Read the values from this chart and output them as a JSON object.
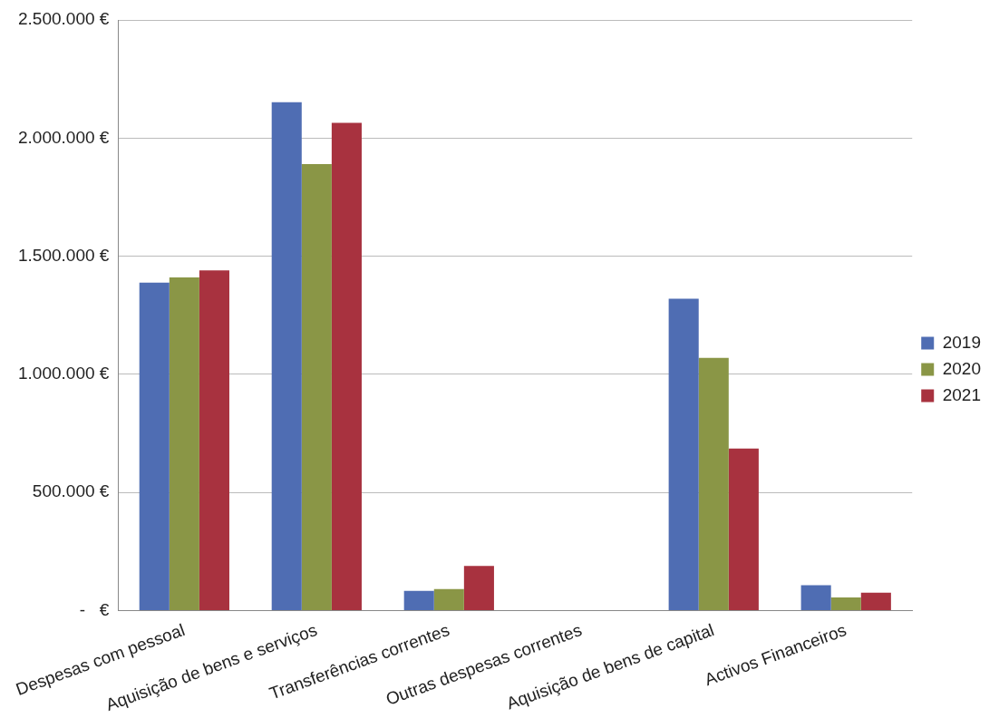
{
  "chart_data": {
    "type": "bar",
    "categories": [
      "Despesas com pessoal",
      "Aquisição de bens e serviços",
      "Transferências correntes",
      "Outras despesas correntes",
      "Aquisição de bens de capital",
      "Activos Financeiros"
    ],
    "series": [
      {
        "name": "2019",
        "color": "#4f6db3",
        "values": [
          1388000,
          2152000,
          83000,
          null,
          1320000,
          107000
        ]
      },
      {
        "name": "2020",
        "color": "#8a9646",
        "values": [
          1410000,
          1890000,
          91000,
          null,
          1069000,
          55000
        ]
      },
      {
        "name": "2021",
        "color": "#a8323f",
        "values": [
          1440000,
          2064000,
          189000,
          null,
          686000,
          75000
        ]
      }
    ],
    "ylim": [
      0,
      2500000
    ],
    "yticks": [
      {
        "value": 0,
        "label": "-   €"
      },
      {
        "value": 500000,
        "label": "500.000 €"
      },
      {
        "value": 1000000,
        "label": "1.000.000 €"
      },
      {
        "value": 1500000,
        "label": "1.500.000 €"
      },
      {
        "value": 2000000,
        "label": "2.000.000 €"
      },
      {
        "value": 2500000,
        "label": "2.500.000 €"
      }
    ],
    "grid": "y",
    "legend": "right"
  }
}
